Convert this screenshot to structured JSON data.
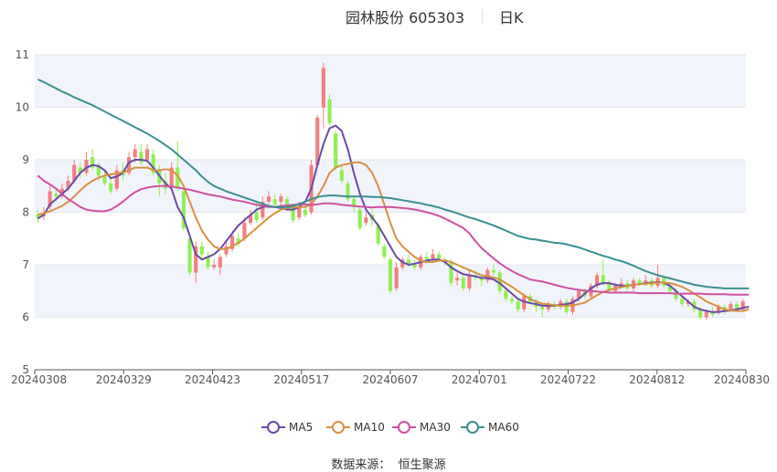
{
  "header": {
    "title": "园林股份 605303",
    "period": "日K"
  },
  "source": {
    "label": "数据来源：",
    "value": "恒生聚源"
  },
  "colors": {
    "up": "#f08080",
    "down": "#90ee54",
    "MA5": "#6a4aa8",
    "MA10": "#d99040",
    "MA30": "#d050a0",
    "MA60": "#3a9090",
    "band": "#f2f4fb",
    "grid": "#e4e7f0",
    "axis": "#555555"
  },
  "chart_data": {
    "type": "candlestick",
    "y_ticks": [
      "5",
      "6",
      "7",
      "8",
      "9",
      "10",
      "11"
    ],
    "ylim": [
      5,
      11
    ],
    "x_ticks": [
      "20240308",
      "20240329",
      "20240423",
      "20240517",
      "20240607",
      "20240701",
      "20240722",
      "20240812",
      "20240830"
    ],
    "legend": [
      "MA5",
      "MA10",
      "MA30",
      "MA60"
    ],
    "ohlc": [
      [
        7.95,
        7.9,
        7.8,
        8.05
      ],
      [
        7.95,
        7.95,
        7.85,
        8.1
      ],
      [
        8.1,
        8.4,
        8.05,
        8.5
      ],
      [
        8.35,
        8.3,
        8.2,
        8.45
      ],
      [
        8.3,
        8.45,
        8.25,
        8.55
      ],
      [
        8.45,
        8.6,
        8.4,
        8.7
      ],
      [
        8.6,
        8.9,
        8.55,
        9.0
      ],
      [
        8.85,
        8.75,
        8.65,
        8.95
      ],
      [
        8.75,
        9.0,
        8.7,
        9.15
      ],
      [
        9.05,
        8.85,
        8.8,
        9.2
      ],
      [
        8.9,
        8.7,
        8.6,
        8.95
      ],
      [
        8.7,
        8.55,
        8.5,
        8.8
      ],
      [
        8.55,
        8.4,
        8.35,
        8.65
      ],
      [
        8.45,
        8.8,
        8.4,
        8.9
      ],
      [
        8.8,
        8.7,
        8.6,
        8.95
      ],
      [
        8.75,
        9.05,
        8.7,
        9.15
      ],
      [
        9.05,
        9.2,
        8.95,
        9.3
      ],
      [
        9.15,
        8.95,
        8.9,
        9.3
      ],
      [
        9.0,
        9.2,
        8.95,
        9.3
      ],
      [
        9.1,
        8.75,
        8.7,
        9.2
      ],
      [
        8.8,
        8.55,
        8.3,
        8.9
      ],
      [
        8.6,
        8.45,
        8.35,
        8.75
      ],
      [
        8.5,
        8.85,
        8.45,
        8.95
      ],
      [
        8.85,
        8.45,
        8.4,
        9.35
      ],
      [
        8.4,
        7.7,
        7.65,
        8.45
      ],
      [
        7.5,
        6.85,
        6.8,
        7.55
      ],
      [
        6.85,
        7.35,
        6.65,
        7.45
      ],
      [
        7.35,
        7.2,
        7.1,
        7.45
      ],
      [
        7.15,
        6.95,
        6.9,
        7.25
      ],
      [
        6.95,
        7.0,
        6.9,
        7.1
      ],
      [
        6.95,
        7.15,
        6.8,
        7.2
      ],
      [
        7.2,
        7.35,
        7.15,
        7.45
      ],
      [
        7.3,
        7.55,
        7.25,
        7.65
      ],
      [
        7.5,
        7.4,
        7.35,
        7.6
      ],
      [
        7.5,
        7.8,
        7.45,
        7.9
      ],
      [
        7.8,
        7.95,
        7.75,
        8.05
      ],
      [
        8.0,
        7.85,
        7.8,
        8.2
      ],
      [
        7.9,
        8.2,
        7.85,
        8.3
      ],
      [
        8.2,
        8.3,
        8.15,
        8.4
      ],
      [
        8.25,
        8.15,
        8.1,
        8.35
      ],
      [
        8.2,
        8.3,
        8.1,
        8.35
      ],
      [
        8.25,
        8.1,
        8.05,
        8.3
      ],
      [
        8.1,
        7.85,
        7.8,
        8.15
      ],
      [
        7.9,
        8.1,
        7.85,
        8.2
      ],
      [
        8.05,
        7.95,
        7.9,
        8.15
      ],
      [
        8.0,
        8.9,
        7.95,
        9.0
      ],
      [
        8.9,
        9.8,
        8.85,
        9.85
      ],
      [
        10.0,
        10.75,
        9.6,
        10.85
      ],
      [
        10.15,
        9.7,
        9.65,
        10.25
      ],
      [
        9.5,
        8.85,
        8.8,
        9.55
      ],
      [
        8.8,
        8.6,
        8.55,
        8.9
      ],
      [
        8.55,
        8.25,
        8.2,
        8.6
      ],
      [
        8.25,
        8.1,
        8.0,
        8.3
      ],
      [
        8.05,
        7.7,
        7.65,
        8.1
      ],
      [
        7.8,
        7.9,
        7.75,
        8.0
      ],
      [
        7.95,
        7.85,
        7.75,
        8.05
      ],
      [
        7.75,
        7.4,
        7.35,
        7.8
      ],
      [
        7.35,
        7.15,
        7.1,
        7.4
      ],
      [
        7.1,
        6.5,
        6.45,
        7.15
      ],
      [
        6.55,
        6.95,
        6.5,
        7.05
      ],
      [
        6.95,
        7.1,
        6.9,
        7.15
      ],
      [
        7.1,
        7.0,
        6.95,
        7.2
      ],
      [
        7.0,
        6.95,
        6.9,
        7.1
      ],
      [
        6.95,
        7.15,
        6.9,
        7.2
      ],
      [
        7.15,
        7.1,
        7.05,
        7.25
      ],
      [
        7.1,
        7.2,
        7.05,
        7.3
      ],
      [
        7.2,
        7.1,
        7.05,
        7.25
      ],
      [
        7.1,
        7.05,
        7.0,
        7.15
      ],
      [
        7.05,
        6.65,
        6.6,
        7.1
      ],
      [
        6.7,
        6.75,
        6.6,
        6.85
      ],
      [
        6.75,
        6.55,
        6.5,
        6.8
      ],
      [
        6.55,
        6.8,
        6.5,
        6.9
      ],
      [
        6.8,
        6.75,
        6.7,
        6.9
      ],
      [
        6.75,
        6.7,
        6.6,
        6.8
      ],
      [
        6.7,
        6.9,
        6.65,
        6.95
      ],
      [
        6.9,
        6.85,
        6.8,
        7.0
      ],
      [
        6.85,
        6.5,
        6.45,
        6.9
      ],
      [
        6.5,
        6.35,
        6.3,
        6.55
      ],
      [
        6.35,
        6.3,
        6.25,
        6.4
      ],
      [
        6.3,
        6.15,
        6.1,
        6.35
      ],
      [
        6.15,
        6.4,
        6.1,
        6.45
      ],
      [
        6.4,
        6.3,
        6.25,
        6.45
      ],
      [
        6.3,
        6.2,
        6.1,
        6.35
      ],
      [
        6.2,
        6.15,
        6.0,
        6.25
      ],
      [
        6.15,
        6.25,
        6.1,
        6.3
      ],
      [
        6.25,
        6.2,
        6.15,
        6.3
      ],
      [
        6.2,
        6.3,
        6.15,
        6.35
      ],
      [
        6.3,
        6.1,
        6.05,
        6.35
      ],
      [
        6.1,
        6.35,
        6.05,
        6.4
      ],
      [
        6.35,
        6.5,
        6.3,
        6.55
      ],
      [
        6.5,
        6.4,
        6.35,
        6.55
      ],
      [
        6.4,
        6.6,
        6.35,
        6.65
      ],
      [
        6.6,
        6.8,
        6.55,
        6.85
      ],
      [
        6.8,
        6.65,
        6.6,
        7.1
      ],
      [
        6.65,
        6.5,
        6.45,
        6.7
      ],
      [
        6.5,
        6.6,
        6.45,
        6.65
      ],
      [
        6.6,
        6.65,
        6.55,
        6.75
      ],
      [
        6.65,
        6.55,
        6.5,
        6.7
      ],
      [
        6.55,
        6.7,
        6.5,
        6.75
      ],
      [
        6.7,
        6.65,
        6.6,
        6.75
      ],
      [
        6.65,
        6.7,
        6.6,
        6.8
      ],
      [
        6.7,
        6.6,
        6.55,
        6.75
      ],
      [
        6.6,
        6.75,
        6.55,
        7.0
      ],
      [
        6.75,
        6.6,
        6.55,
        6.8
      ],
      [
        6.6,
        6.5,
        6.45,
        6.65
      ],
      [
        6.5,
        6.35,
        6.3,
        6.55
      ],
      [
        6.35,
        6.25,
        6.2,
        6.4
      ],
      [
        6.25,
        6.3,
        6.2,
        6.35
      ],
      [
        6.3,
        6.15,
        6.1,
        6.35
      ],
      [
        6.15,
        6.0,
        5.95,
        6.2
      ],
      [
        6.0,
        6.1,
        5.95,
        6.15
      ],
      [
        6.1,
        6.05,
        6.0,
        6.2
      ],
      [
        6.1,
        6.2,
        6.05,
        6.25
      ],
      [
        6.2,
        6.1,
        6.05,
        6.25
      ],
      [
        6.15,
        6.25,
        6.1,
        6.3
      ],
      [
        6.25,
        6.15,
        6.1,
        6.3
      ],
      [
        6.15,
        6.3,
        6.1,
        6.35
      ]
    ],
    "ma": {
      "MA5": [
        7.88,
        7.95,
        8.15,
        8.25,
        8.35,
        8.45,
        8.6,
        8.75,
        8.85,
        8.9,
        8.88,
        8.8,
        8.65,
        8.68,
        8.75,
        8.95,
        9.0,
        9.0,
        8.98,
        8.85,
        8.7,
        8.55,
        8.45,
        8.1,
        7.9,
        7.55,
        7.2,
        7.1,
        7.15,
        7.2,
        7.3,
        7.45,
        7.6,
        7.75,
        7.85,
        7.95,
        8.05,
        8.1,
        8.12,
        8.1,
        8.08,
        8.05,
        8.05,
        8.1,
        8.2,
        8.45,
        8.9,
        9.3,
        9.6,
        9.65,
        9.55,
        9.2,
        8.75,
        8.35,
        8.05,
        7.9,
        7.75,
        7.55,
        7.35,
        7.15,
        7.05,
        7.0,
        7.02,
        7.05,
        7.08,
        7.1,
        7.1,
        7.05,
        6.95,
        6.88,
        6.82,
        6.8,
        6.78,
        6.75,
        6.75,
        6.72,
        6.65,
        6.55,
        6.45,
        6.35,
        6.3,
        6.27,
        6.25,
        6.22,
        6.22,
        6.22,
        6.24,
        6.25,
        6.28,
        6.35,
        6.45,
        6.55,
        6.62,
        6.65,
        6.65,
        6.62,
        6.6,
        6.6,
        6.62,
        6.63,
        6.65,
        6.66,
        6.67,
        6.66,
        6.6,
        6.5,
        6.4,
        6.3,
        6.2,
        6.15,
        6.12,
        6.1,
        6.1,
        6.12,
        6.13,
        6.15,
        6.18,
        6.2
      ],
      "MA10": [
        7.95,
        7.98,
        8.02,
        8.07,
        8.12,
        8.2,
        8.3,
        8.42,
        8.52,
        8.6,
        8.66,
        8.7,
        8.72,
        8.74,
        8.76,
        8.8,
        8.85,
        8.85,
        8.85,
        8.8,
        8.8,
        8.82,
        8.8,
        8.7,
        8.5,
        8.2,
        7.9,
        7.65,
        7.48,
        7.35,
        7.3,
        7.3,
        7.35,
        7.42,
        7.5,
        7.6,
        7.7,
        7.8,
        7.9,
        7.98,
        8.05,
        8.08,
        8.1,
        8.1,
        8.1,
        8.15,
        8.3,
        8.5,
        8.75,
        8.85,
        8.9,
        8.92,
        8.95,
        8.95,
        8.9,
        8.75,
        8.5,
        8.15,
        7.8,
        7.5,
        7.35,
        7.25,
        7.15,
        7.08,
        7.05,
        7.05,
        7.08,
        7.08,
        7.05,
        7.0,
        6.95,
        6.9,
        6.85,
        6.8,
        6.78,
        6.76,
        6.72,
        6.65,
        6.58,
        6.5,
        6.42,
        6.35,
        6.3,
        6.26,
        6.25,
        6.23,
        6.22,
        6.22,
        6.23,
        6.25,
        6.28,
        6.35,
        6.42,
        6.48,
        6.52,
        6.55,
        6.57,
        6.6,
        6.62,
        6.63,
        6.64,
        6.65,
        6.66,
        6.66,
        6.65,
        6.62,
        6.58,
        6.52,
        6.45,
        6.38,
        6.3,
        6.25,
        6.2,
        6.15,
        6.13,
        6.12,
        6.12,
        6.15
      ],
      "MA30": [
        8.7,
        8.6,
        8.53,
        8.45,
        8.35,
        8.25,
        8.18,
        8.1,
        8.05,
        8.03,
        8.02,
        8.02,
        8.05,
        8.12,
        8.2,
        8.3,
        8.38,
        8.44,
        8.47,
        8.49,
        8.5,
        8.5,
        8.49,
        8.47,
        8.45,
        8.43,
        8.4,
        8.37,
        8.34,
        8.32,
        8.3,
        8.27,
        8.24,
        8.22,
        8.2,
        8.17,
        8.14,
        8.12,
        8.1,
        8.1,
        8.12,
        8.13,
        8.14,
        8.15,
        8.15,
        8.14,
        8.15,
        8.17,
        8.17,
        8.16,
        8.14,
        8.13,
        8.12,
        8.11,
        8.1,
        8.09,
        8.1,
        8.1,
        8.1,
        8.09,
        8.08,
        8.07,
        8.05,
        8.03,
        8.0,
        7.97,
        7.93,
        7.88,
        7.82,
        7.76,
        7.7,
        7.6,
        7.45,
        7.32,
        7.22,
        7.12,
        7.03,
        6.95,
        6.88,
        6.82,
        6.77,
        6.72,
        6.7,
        6.68,
        6.65,
        6.62,
        6.59,
        6.56,
        6.54,
        6.52,
        6.51,
        6.5,
        6.49,
        6.48,
        6.47,
        6.47,
        6.47,
        6.47,
        6.47,
        6.46,
        6.46,
        6.46,
        6.46,
        6.46,
        6.46,
        6.45,
        6.45,
        6.45,
        6.45,
        6.45,
        6.44,
        6.44,
        6.44,
        6.44,
        6.43,
        6.43,
        6.43,
        6.43
      ],
      "MA60": [
        10.53,
        10.48,
        10.42,
        10.36,
        10.3,
        10.25,
        10.19,
        10.14,
        10.09,
        10.04,
        9.98,
        9.92,
        9.86,
        9.8,
        9.74,
        9.68,
        9.62,
        9.56,
        9.5,
        9.43,
        9.36,
        9.28,
        9.2,
        9.1,
        9.0,
        8.9,
        8.8,
        8.68,
        8.58,
        8.5,
        8.45,
        8.4,
        8.36,
        8.32,
        8.28,
        8.24,
        8.2,
        8.16,
        8.12,
        8.1,
        8.1,
        8.1,
        8.12,
        8.16,
        8.2,
        8.25,
        8.29,
        8.31,
        8.32,
        8.32,
        8.31,
        8.3,
        8.3,
        8.3,
        8.3,
        8.29,
        8.29,
        8.28,
        8.27,
        8.25,
        8.23,
        8.21,
        8.19,
        8.17,
        8.14,
        8.12,
        8.09,
        8.05,
        8.02,
        7.98,
        7.94,
        7.9,
        7.87,
        7.83,
        7.79,
        7.75,
        7.7,
        7.65,
        7.6,
        7.55,
        7.52,
        7.49,
        7.48,
        7.46,
        7.44,
        7.42,
        7.41,
        7.39,
        7.36,
        7.33,
        7.29,
        7.25,
        7.21,
        7.17,
        7.14,
        7.1,
        7.07,
        7.03,
        6.98,
        6.93,
        6.88,
        6.84,
        6.8,
        6.77,
        6.74,
        6.71,
        6.68,
        6.65,
        6.62,
        6.6,
        6.58,
        6.57,
        6.56,
        6.55,
        6.55,
        6.55,
        6.55,
        6.55
      ]
    }
  }
}
